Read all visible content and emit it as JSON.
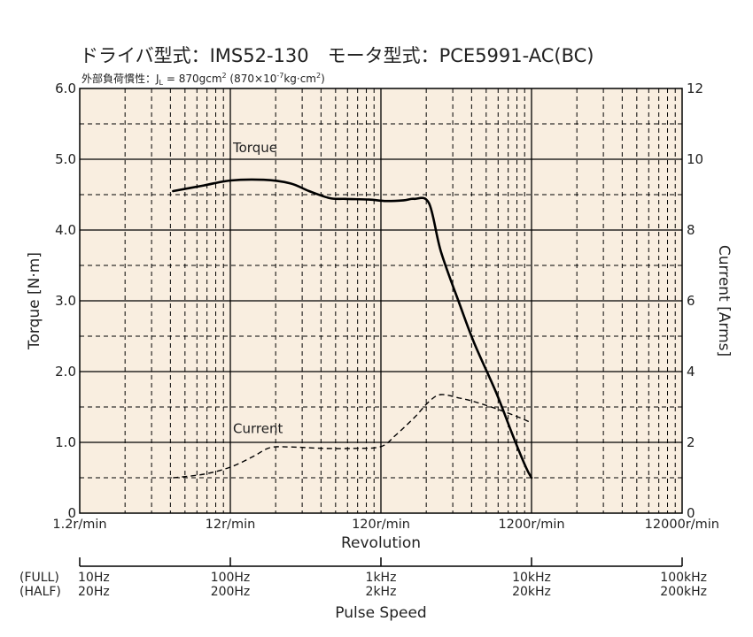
{
  "title": "ドライバ型式：IMS52-130　モータ型式：PCE5991-AC(BC)",
  "subtitle": "外部負荷慣性：J",
  "subtitle_sub": "L",
  "subtitle_rest": " = 870gcm",
  "subtitle_sup1": "2",
  "subtitle_rest2": " (870×10",
  "subtitle_sup2": "-7",
  "subtitle_rest3": "kg·cm",
  "subtitle_sup3": "2",
  "subtitle_rest4": ")",
  "colors": {
    "plot_background": "#f9eee0",
    "major_grid": "#000000",
    "minor_grid": "#000000",
    "torque_line": "#000000",
    "current_line": "#000000"
  },
  "pulse_axis": {
    "title": "Pulse Speed",
    "full_label": "(FULL)",
    "half_label": "(HALF)",
    "full_ticks": [
      "10Hz",
      "100Hz",
      "1kHz",
      "10kHz",
      "100kHz"
    ],
    "half_ticks": [
      "20Hz",
      "200Hz",
      "2kHz",
      "20kHz",
      "200kHz"
    ]
  },
  "chart_data": {
    "type": "line",
    "title": "ドライバ型式：IMS52-130　モータ型式：PCE5991-AC(BC)",
    "xlabel": "Revolution",
    "ylabel": "Torque [N·m]",
    "y2label": "Current [Arms]",
    "xscale": "log",
    "xlim": [
      1.2,
      12000
    ],
    "x_tick_values": [
      1.2,
      12,
      120,
      1200,
      12000
    ],
    "x_tick_labels": [
      "1.2r/min",
      "12r/min",
      "120r/min",
      "1200r/min",
      "12000r/min"
    ],
    "ylim": [
      0,
      6
    ],
    "y_ticks": [
      "0",
      "1.0",
      "2.0",
      "3.0",
      "4.0",
      "5.0",
      "6.0"
    ],
    "y2lim": [
      0,
      12
    ],
    "y2_ticks": [
      "0",
      "2",
      "4",
      "6",
      "8",
      "10",
      "12"
    ],
    "grid": true,
    "annotations": [
      {
        "text": "Torque",
        "x": 12.5,
        "y": 5.1
      },
      {
        "text": "Current",
        "x": 12.5,
        "y": 1.13
      }
    ],
    "series": [
      {
        "name": "Torque",
        "axis": "left",
        "style": "solid",
        "x": [
          5,
          8,
          12,
          20,
          30,
          40,
          55,
          70,
          100,
          130,
          170,
          200,
          250,
          300,
          400,
          500,
          700,
          900,
          1100,
          1200
        ],
        "y": [
          4.55,
          4.63,
          4.7,
          4.71,
          4.66,
          4.55,
          4.45,
          4.44,
          4.43,
          4.41,
          4.42,
          4.44,
          4.38,
          3.7,
          2.95,
          2.4,
          1.7,
          1.1,
          0.65,
          0.5
        ]
      },
      {
        "name": "Current",
        "axis": "right",
        "style": "dashed",
        "x": [
          5,
          8,
          12,
          17,
          22,
          30,
          50,
          80,
          120,
          150,
          200,
          250,
          300,
          400,
          500,
          700,
          1000,
          1200
        ],
        "y": [
          1.0,
          1.1,
          1.3,
          1.6,
          1.85,
          1.87,
          1.83,
          1.83,
          1.88,
          2.2,
          2.7,
          3.15,
          3.35,
          3.25,
          3.15,
          2.95,
          2.7,
          2.55
        ]
      }
    ]
  }
}
